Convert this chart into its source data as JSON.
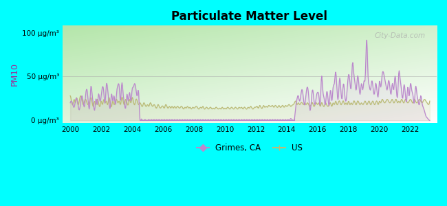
{
  "title": "Particulate Matter Level",
  "ylabel": "PM10",
  "yticks": [
    0,
    50,
    100
  ],
  "ytick_labels": [
    "0 μg/m³",
    "50 μg/m³",
    "100 μg/m³"
  ],
  "xlim": [
    1999.5,
    2023.7
  ],
  "ylim": [
    -3,
    108
  ],
  "background_color": "#00ffff",
  "grimes_color": "#bb88cc",
  "us_color": "#bbbb77",
  "watermark": "City-Data.com",
  "legend_grimes": "Grimes, CA",
  "legend_us": "US",
  "grimes_x": [
    2000.0,
    2000.08,
    2000.17,
    2000.25,
    2000.33,
    2000.42,
    2000.5,
    2000.58,
    2000.67,
    2000.75,
    2000.83,
    2000.92,
    2001.0,
    2001.08,
    2001.17,
    2001.25,
    2001.33,
    2001.42,
    2001.5,
    2001.58,
    2001.67,
    2001.75,
    2001.83,
    2001.92,
    2002.0,
    2002.08,
    2002.17,
    2002.25,
    2002.33,
    2002.42,
    2002.5,
    2002.58,
    2002.67,
    2002.75,
    2002.83,
    2002.92,
    2003.0,
    2003.08,
    2003.17,
    2003.25,
    2003.33,
    2003.42,
    2003.5,
    2003.58,
    2003.67,
    2003.75,
    2003.83,
    2003.92,
    2004.0,
    2004.08,
    2004.17,
    2004.25,
    2004.33,
    2004.42,
    2004.5,
    2004.58,
    2004.67,
    2004.75,
    2004.83,
    2004.92,
    2005.0,
    2005.08,
    2005.17,
    2005.25,
    2005.33,
    2005.42,
    2005.5,
    2005.58,
    2005.67,
    2005.75,
    2005.83,
    2005.92,
    2006.0,
    2006.08,
    2006.17,
    2006.25,
    2006.33,
    2006.42,
    2006.5,
    2006.58,
    2006.67,
    2006.75,
    2006.83,
    2006.92,
    2007.0,
    2007.08,
    2007.17,
    2007.25,
    2007.33,
    2007.42,
    2007.5,
    2007.58,
    2007.67,
    2007.75,
    2007.83,
    2007.92,
    2008.0,
    2008.08,
    2008.17,
    2008.25,
    2008.33,
    2008.42,
    2008.5,
    2008.58,
    2008.67,
    2008.75,
    2008.83,
    2008.92,
    2009.0,
    2009.08,
    2009.17,
    2009.25,
    2009.33,
    2009.42,
    2009.5,
    2009.58,
    2009.67,
    2009.75,
    2009.83,
    2009.92,
    2010.0,
    2010.08,
    2010.17,
    2010.25,
    2010.33,
    2010.42,
    2010.5,
    2010.58,
    2010.67,
    2010.75,
    2010.83,
    2010.92,
    2011.0,
    2011.08,
    2011.17,
    2011.25,
    2011.33,
    2011.42,
    2011.5,
    2011.58,
    2011.67,
    2011.75,
    2011.83,
    2011.92,
    2012.0,
    2012.08,
    2012.17,
    2012.25,
    2012.33,
    2012.42,
    2012.5,
    2012.58,
    2012.67,
    2012.75,
    2012.83,
    2012.92,
    2013.0,
    2013.08,
    2013.17,
    2013.25,
    2013.33,
    2013.42,
    2013.5,
    2013.58,
    2013.67,
    2013.75,
    2013.83,
    2013.92,
    2014.0,
    2014.08,
    2014.17,
    2014.25,
    2014.33,
    2014.42,
    2014.5,
    2014.58,
    2014.67,
    2014.75,
    2014.83,
    2014.92,
    2015.0,
    2015.08,
    2015.17,
    2015.25,
    2015.33,
    2015.42,
    2015.5,
    2015.58,
    2015.67,
    2015.75,
    2015.83,
    2015.92,
    2016.0,
    2016.08,
    2016.17,
    2016.25,
    2016.33,
    2016.42,
    2016.5,
    2016.58,
    2016.67,
    2016.75,
    2016.83,
    2016.92,
    2017.0,
    2017.08,
    2017.17,
    2017.25,
    2017.33,
    2017.42,
    2017.5,
    2017.58,
    2017.67,
    2017.75,
    2017.83,
    2017.92,
    2018.0,
    2018.08,
    2018.17,
    2018.25,
    2018.33,
    2018.42,
    2018.5,
    2018.58,
    2018.67,
    2018.75,
    2018.83,
    2018.92,
    2019.0,
    2019.08,
    2019.17,
    2019.25,
    2019.33,
    2019.42,
    2019.5,
    2019.58,
    2019.67,
    2019.75,
    2019.83,
    2019.92,
    2020.0,
    2020.08,
    2020.17,
    2020.25,
    2020.33,
    2020.42,
    2020.5,
    2020.58,
    2020.67,
    2020.75,
    2020.83,
    2020.92,
    2021.0,
    2021.08,
    2021.17,
    2021.25,
    2021.33,
    2021.42,
    2021.5,
    2021.58,
    2021.67,
    2021.75,
    2021.83,
    2021.92,
    2022.0,
    2022.08,
    2022.17,
    2022.25,
    2022.33,
    2022.42,
    2022.5,
    2022.58,
    2022.67,
    2022.75,
    2022.83,
    2022.92,
    2023.0,
    2023.08,
    2023.17,
    2023.25
  ],
  "grimes_y": [
    20,
    22,
    18,
    15,
    22,
    25,
    18,
    12,
    20,
    28,
    22,
    16,
    30,
    35,
    20,
    15,
    38,
    28,
    18,
    12,
    25,
    18,
    30,
    22,
    28,
    38,
    32,
    20,
    40,
    35,
    22,
    14,
    30,
    22,
    28,
    18,
    32,
    40,
    38,
    22,
    42,
    30,
    20,
    14,
    30,
    22,
    32,
    22,
    35,
    38,
    42,
    35,
    28,
    32,
    2,
    1,
    0,
    0,
    1,
    0,
    0,
    1,
    0,
    1,
    0,
    1,
    0,
    1,
    0,
    1,
    0,
    1,
    0,
    1,
    0,
    1,
    0,
    1,
    0,
    1,
    0,
    1,
    0,
    1,
    0,
    1,
    0,
    1,
    0,
    1,
    0,
    1,
    0,
    1,
    0,
    1,
    0,
    1,
    0,
    1,
    0,
    1,
    0,
    1,
    0,
    1,
    0,
    1,
    0,
    1,
    0,
    1,
    0,
    1,
    0,
    1,
    0,
    1,
    0,
    1,
    0,
    1,
    0,
    1,
    0,
    1,
    0,
    1,
    0,
    1,
    0,
    1,
    0,
    1,
    0,
    1,
    0,
    1,
    0,
    1,
    0,
    1,
    0,
    1,
    0,
    1,
    0,
    1,
    0,
    1,
    0,
    1,
    0,
    1,
    0,
    1,
    0,
    1,
    0,
    1,
    0,
    1,
    0,
    1,
    0,
    1,
    0,
    1,
    0,
    1,
    0,
    2,
    1,
    0,
    2,
    15,
    25,
    28,
    22,
    30,
    35,
    25,
    18,
    30,
    38,
    28,
    12,
    20,
    35,
    25,
    18,
    28,
    32,
    28,
    20,
    50,
    35,
    25,
    18,
    32,
    25,
    18,
    35,
    22,
    38,
    42,
    55,
    35,
    25,
    48,
    35,
    25,
    42,
    30,
    22,
    38,
    52,
    45,
    38,
    65,
    55,
    42,
    35,
    50,
    40,
    30,
    42,
    35,
    45,
    50,
    92,
    55,
    40,
    35,
    45,
    38,
    30,
    42,
    35,
    28,
    45,
    38,
    52,
    55,
    48,
    40,
    35,
    45,
    38,
    30,
    42,
    35,
    50,
    38,
    28,
    55,
    48,
    35,
    25,
    40,
    30,
    22,
    38,
    28,
    42,
    35,
    28,
    20,
    38,
    30,
    22,
    18,
    28,
    20,
    15,
    10,
    5,
    3,
    1,
    0
  ],
  "us_x": [
    2000.0,
    2000.08,
    2000.17,
    2000.25,
    2000.33,
    2000.42,
    2000.5,
    2000.58,
    2000.67,
    2000.75,
    2000.83,
    2000.92,
    2001.0,
    2001.08,
    2001.17,
    2001.25,
    2001.33,
    2001.42,
    2001.5,
    2001.58,
    2001.67,
    2001.75,
    2001.83,
    2001.92,
    2002.0,
    2002.08,
    2002.17,
    2002.25,
    2002.33,
    2002.42,
    2002.5,
    2002.58,
    2002.67,
    2002.75,
    2002.83,
    2002.92,
    2003.0,
    2003.08,
    2003.17,
    2003.25,
    2003.33,
    2003.42,
    2003.5,
    2003.58,
    2003.67,
    2003.75,
    2003.83,
    2003.92,
    2004.0,
    2004.08,
    2004.17,
    2004.25,
    2004.33,
    2004.42,
    2004.5,
    2004.58,
    2004.67,
    2004.75,
    2004.83,
    2004.92,
    2005.0,
    2005.08,
    2005.17,
    2005.25,
    2005.33,
    2005.42,
    2005.5,
    2005.58,
    2005.67,
    2005.75,
    2005.83,
    2005.92,
    2006.0,
    2006.08,
    2006.17,
    2006.25,
    2006.33,
    2006.42,
    2006.5,
    2006.58,
    2006.67,
    2006.75,
    2006.83,
    2006.92,
    2007.0,
    2007.08,
    2007.17,
    2007.25,
    2007.33,
    2007.42,
    2007.5,
    2007.58,
    2007.67,
    2007.75,
    2007.83,
    2007.92,
    2008.0,
    2008.08,
    2008.17,
    2008.25,
    2008.33,
    2008.42,
    2008.5,
    2008.58,
    2008.67,
    2008.75,
    2008.83,
    2008.92,
    2009.0,
    2009.08,
    2009.17,
    2009.25,
    2009.33,
    2009.42,
    2009.5,
    2009.58,
    2009.67,
    2009.75,
    2009.83,
    2009.92,
    2010.0,
    2010.08,
    2010.17,
    2010.25,
    2010.33,
    2010.42,
    2010.5,
    2010.58,
    2010.67,
    2010.75,
    2010.83,
    2010.92,
    2011.0,
    2011.08,
    2011.17,
    2011.25,
    2011.33,
    2011.42,
    2011.5,
    2011.58,
    2011.67,
    2011.75,
    2011.83,
    2011.92,
    2012.0,
    2012.08,
    2012.17,
    2012.25,
    2012.33,
    2012.42,
    2012.5,
    2012.58,
    2012.67,
    2012.75,
    2012.83,
    2012.92,
    2013.0,
    2013.08,
    2013.17,
    2013.25,
    2013.33,
    2013.42,
    2013.5,
    2013.58,
    2013.67,
    2013.75,
    2013.83,
    2013.92,
    2014.0,
    2014.08,
    2014.17,
    2014.25,
    2014.33,
    2014.42,
    2014.5,
    2014.58,
    2014.67,
    2014.75,
    2014.83,
    2014.92,
    2015.0,
    2015.08,
    2015.17,
    2015.25,
    2015.33,
    2015.42,
    2015.5,
    2015.58,
    2015.67,
    2015.75,
    2015.83,
    2015.92,
    2016.0,
    2016.08,
    2016.17,
    2016.25,
    2016.33,
    2016.42,
    2016.5,
    2016.58,
    2016.67,
    2016.75,
    2016.83,
    2016.92,
    2017.0,
    2017.08,
    2017.17,
    2017.25,
    2017.33,
    2017.42,
    2017.5,
    2017.58,
    2017.67,
    2017.75,
    2017.83,
    2017.92,
    2018.0,
    2018.08,
    2018.17,
    2018.25,
    2018.33,
    2018.42,
    2018.5,
    2018.58,
    2018.67,
    2018.75,
    2018.83,
    2018.92,
    2019.0,
    2019.08,
    2019.17,
    2019.25,
    2019.33,
    2019.42,
    2019.5,
    2019.58,
    2019.67,
    2019.75,
    2019.83,
    2019.92,
    2020.0,
    2020.08,
    2020.17,
    2020.25,
    2020.33,
    2020.42,
    2020.5,
    2020.58,
    2020.67,
    2020.75,
    2020.83,
    2020.92,
    2021.0,
    2021.08,
    2021.17,
    2021.25,
    2021.33,
    2021.42,
    2021.5,
    2021.58,
    2021.67,
    2021.75,
    2021.83,
    2021.92,
    2022.0,
    2022.08,
    2022.17,
    2022.25,
    2022.33,
    2022.42,
    2022.5,
    2022.58,
    2022.67,
    2022.75,
    2022.83,
    2022.92,
    2023.0,
    2023.08,
    2023.17,
    2023.25
  ],
  "us_y": [
    28,
    22,
    18,
    24,
    20,
    26,
    18,
    22,
    28,
    24,
    18,
    22,
    24,
    20,
    18,
    22,
    26,
    20,
    16,
    22,
    18,
    24,
    20,
    16,
    22,
    18,
    24,
    20,
    22,
    18,
    26,
    20,
    16,
    22,
    18,
    22,
    24,
    20,
    22,
    18,
    26,
    22,
    18,
    24,
    20,
    18,
    24,
    20,
    26,
    22,
    18,
    24,
    22,
    18,
    20,
    18,
    16,
    20,
    18,
    16,
    18,
    16,
    20,
    18,
    16,
    18,
    16,
    14,
    18,
    16,
    14,
    16,
    16,
    14,
    18,
    16,
    14,
    16,
    14,
    16,
    14,
    16,
    14,
    16,
    15,
    14,
    16,
    15,
    13,
    15,
    14,
    16,
    14,
    15,
    13,
    15,
    14,
    15,
    16,
    14,
    13,
    15,
    14,
    16,
    13,
    14,
    15,
    13,
    14,
    15,
    13,
    14,
    13,
    15,
    14,
    13,
    14,
    13,
    15,
    13,
    14,
    13,
    15,
    14,
    13,
    15,
    14,
    13,
    15,
    14,
    13,
    15,
    14,
    15,
    13,
    15,
    14,
    13,
    15,
    14,
    16,
    14,
    13,
    15,
    15,
    16,
    14,
    17,
    15,
    14,
    17,
    15,
    16,
    15,
    17,
    16,
    16,
    17,
    15,
    17,
    16,
    15,
    17,
    15,
    16,
    17,
    15,
    17,
    16,
    17,
    18,
    16,
    17,
    18,
    20,
    22,
    18,
    20,
    18,
    20,
    20,
    18,
    20,
    18,
    20,
    18,
    16,
    18,
    20,
    16,
    18,
    20,
    18,
    20,
    16,
    20,
    18,
    16,
    20,
    18,
    16,
    18,
    20,
    16,
    20,
    18,
    22,
    18,
    20,
    22,
    18,
    20,
    22,
    18,
    20,
    18,
    22,
    18,
    20,
    18,
    22,
    20,
    18,
    22,
    20,
    18,
    20,
    18,
    20,
    22,
    18,
    20,
    22,
    18,
    20,
    22,
    18,
    20,
    22,
    18,
    22,
    20,
    24,
    22,
    20,
    22,
    24,
    22,
    20,
    22,
    24,
    20,
    22,
    24,
    20,
    22,
    20,
    24,
    22,
    20,
    24,
    22,
    20,
    22,
    24,
    22,
    20,
    24,
    22,
    20,
    22,
    24,
    22,
    20,
    22,
    24,
    22,
    20,
    18,
    22
  ]
}
